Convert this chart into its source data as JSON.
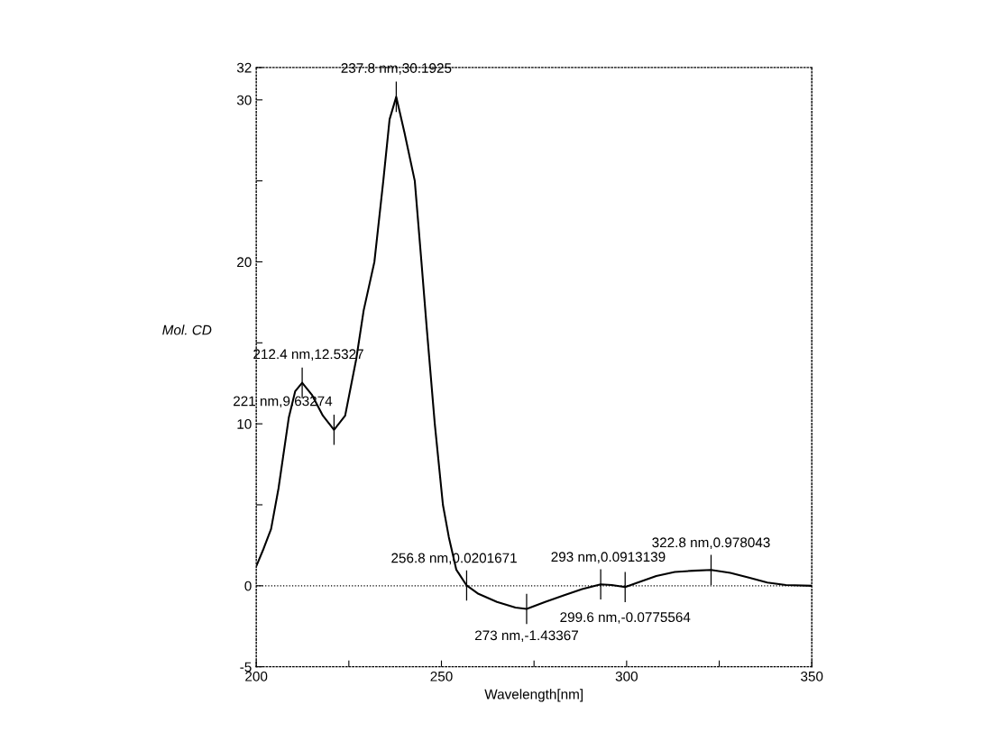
{
  "chart_data": {
    "type": "line",
    "xlabel": "Wavelength[nm]",
    "ylabel": "Mol. CD",
    "color": "#000000",
    "x": [
      200,
      202,
      204,
      206,
      208.8,
      210.5,
      212.4,
      215,
      218,
      221,
      224,
      227,
      229,
      231.9,
      234.3,
      236,
      237.8,
      240,
      242.8,
      244.6,
      246,
      248.2,
      250.4,
      252,
      254,
      256.8,
      260,
      265,
      270,
      273,
      278,
      283,
      288,
      293,
      296,
      299.6,
      303,
      308,
      313,
      318,
      322.8,
      328,
      333,
      338,
      343,
      350
    ],
    "values": [
      1.2,
      2.3,
      3.5,
      6,
      10.4,
      12,
      12.53,
      11.8,
      10.5,
      9.63,
      10.5,
      14,
      17,
      20,
      25,
      28.8,
      30.19,
      28,
      25,
      20,
      16,
      10,
      5,
      3,
      1,
      0.02,
      -0.5,
      -1.0,
      -1.35,
      -1.43,
      -1.0,
      -0.6,
      -0.2,
      0.09,
      0.05,
      -0.08,
      0.2,
      0.6,
      0.85,
      0.93,
      0.98,
      0.8,
      0.5,
      0.2,
      0.05,
      0
    ],
    "xlim": [
      200,
      350
    ],
    "ylim": [
      -5,
      32
    ],
    "xticks": [
      200,
      {
        "value": 225,
        "label": null
      },
      250,
      {
        "value": 275,
        "label": null
      },
      300,
      {
        "value": 325,
        "label": null
      },
      350
    ],
    "yticks": [
      -5,
      0,
      {
        "value": 5,
        "label": null
      },
      10,
      {
        "value": 15,
        "label": null
      },
      20,
      {
        "value": 25,
        "label": null
      },
      30,
      32
    ],
    "grid": false,
    "line_style": "solid",
    "marker": "none",
    "ref_lines": [
      {
        "axis": "y",
        "value": 0,
        "line_style": "dotted",
        "color": "#000000"
      }
    ],
    "annotations": [
      {
        "text": "212.4 nm,12.5327",
        "x": 212.4,
        "y": 12.5327
      },
      {
        "text": "221 nm,9.63274",
        "x": 221,
        "y": 9.63274
      },
      {
        "text": "237.8 nm,30.1925",
        "x": 237.8,
        "y": 30.1925
      },
      {
        "text": "256.8 nm,0.0201671",
        "x": 256.8,
        "y": 0.0201671
      },
      {
        "text": "273 nm,-1.43367",
        "x": 273,
        "y": -1.43367
      },
      {
        "text": "293 nm,0.0913139",
        "x": 293,
        "y": 0.0913139
      },
      {
        "text": "299.6 nm,-0.0775564",
        "x": 299.6,
        "y": -0.0775564
      },
      {
        "text": "322.8 nm,0.978043",
        "x": 322.8,
        "y": 0.978043
      }
    ]
  }
}
